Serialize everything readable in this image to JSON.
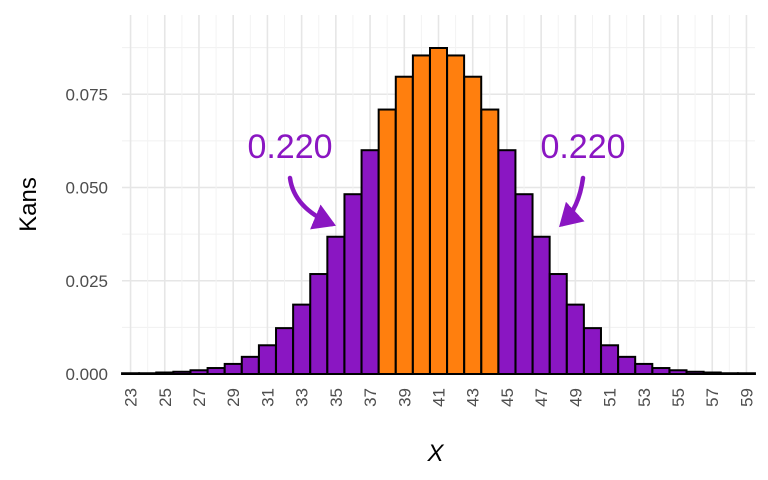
{
  "chart_data": {
    "type": "bar",
    "xlabel": "X",
    "ylabel": "Kans",
    "x": [
      23,
      24,
      25,
      26,
      27,
      28,
      29,
      30,
      31,
      32,
      33,
      34,
      35,
      36,
      37,
      38,
      39,
      40,
      41,
      42,
      43,
      44,
      45,
      46,
      47,
      48,
      49,
      50,
      51,
      52,
      53,
      54,
      55,
      56,
      57,
      58,
      59
    ],
    "values": [
      0.0002,
      0.0002,
      0.0004,
      0.0006,
      0.001,
      0.0016,
      0.0027,
      0.0046,
      0.0077,
      0.0123,
      0.0186,
      0.0268,
      0.0368,
      0.0482,
      0.06,
      0.0709,
      0.0797,
      0.0854,
      0.0874,
      0.0854,
      0.0797,
      0.0709,
      0.06,
      0.0482,
      0.0368,
      0.0268,
      0.0186,
      0.0123,
      0.0077,
      0.0046,
      0.0027,
      0.0016,
      0.001,
      0.0006,
      0.0004,
      0.0002,
      0.0002
    ],
    "highlight_range": [
      38,
      44
    ],
    "colors": {
      "highlight": "#ff7f0e",
      "tail": "#8a16c2",
      "outline": "#000000"
    },
    "ylim": [
      0,
      0.09
    ],
    "y_ticks": [
      0.0,
      0.025,
      0.05,
      0.075
    ],
    "y_tick_labels": [
      "0.000",
      "0.025",
      "0.050",
      "0.075"
    ],
    "x_tick_labels": [
      "23",
      "25",
      "27",
      "29",
      "31",
      "33",
      "35",
      "37",
      "39",
      "41",
      "43",
      "45",
      "47",
      "49",
      "51",
      "53",
      "55",
      "57",
      "59"
    ],
    "grid": true,
    "annotations": [
      {
        "text": "0.220",
        "side": "left",
        "points_to": 35
      },
      {
        "text": "0.220",
        "side": "right",
        "points_to": 48
      }
    ],
    "annotation_color": "#8a16c2"
  }
}
